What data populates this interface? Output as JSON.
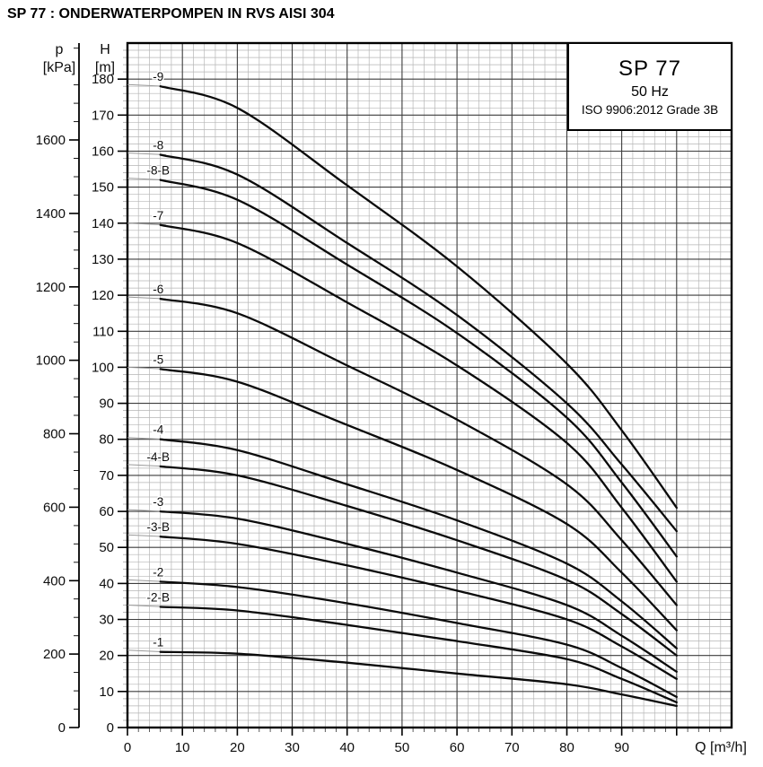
{
  "page": {
    "title": "SP 77 : ONDERWATERPOMPEN IN RVS AISI 304"
  },
  "info_box": {
    "model": "SP 77",
    "frequency": "50 Hz",
    "standard": "ISO 9906:2012 Grade 3B"
  },
  "chart_data": {
    "type": "line",
    "title": "SP 77",
    "xlabel": "Q [m³/h]",
    "ylabel_inner": "H [m]",
    "ylabel_outer": "p [kPa]",
    "x_axis": {
      "name": "Q",
      "unit": "[m³/h]",
      "min": 0,
      "max": 110,
      "major_step": 10,
      "minor_step": 2,
      "tick_labels": [
        0,
        10,
        20,
        30,
        40,
        50,
        60,
        70,
        80,
        90
      ]
    },
    "y_axis_head": {
      "name": "H",
      "unit": "[m]",
      "min": 0,
      "max": 190,
      "major_step": 10,
      "minor_step": 2,
      "tick_labels": [
        0,
        10,
        20,
        30,
        40,
        50,
        60,
        70,
        80,
        90,
        100,
        110,
        120,
        130,
        140,
        150,
        160,
        170,
        180
      ]
    },
    "y_axis_pressure": {
      "name": "p",
      "unit": "[kPa]",
      "min": 0,
      "max": 1860,
      "major_step": 200,
      "minor_step": 50,
      "kpa_per_m": 9.81,
      "tick_labels": [
        0,
        200,
        400,
        600,
        800,
        1000,
        1200,
        1400,
        1600
      ]
    },
    "grid": {
      "minor_step_x": 2,
      "minor_step_y": 2,
      "major_step_x": 10,
      "major_step_y": 10
    },
    "legend_position": "top-right",
    "series": [
      {
        "label": "-9",
        "shutoff_head_m": 178,
        "points": [
          [
            6,
            178
          ],
          [
            20,
            172
          ],
          [
            40,
            150.5
          ],
          [
            60,
            128
          ],
          [
            80,
            101
          ],
          [
            90,
            82.5
          ],
          [
            100,
            61
          ]
        ]
      },
      {
        "label": "-8",
        "shutoff_head_m": 159,
        "points": [
          [
            6,
            159
          ],
          [
            20,
            153.5
          ],
          [
            40,
            134.5
          ],
          [
            60,
            114.5
          ],
          [
            80,
            90
          ],
          [
            90,
            73
          ],
          [
            100,
            54.5
          ]
        ]
      },
      {
        "label": "-8-B",
        "shutoff_head_m": 152,
        "points": [
          [
            6,
            152
          ],
          [
            20,
            146.5
          ],
          [
            40,
            128.5
          ],
          [
            60,
            109.5
          ],
          [
            80,
            86
          ],
          [
            90,
            68
          ],
          [
            100,
            47.5
          ]
        ]
      },
      {
        "label": "-7",
        "shutoff_head_m": 139.5,
        "points": [
          [
            6,
            139.5
          ],
          [
            20,
            134.5
          ],
          [
            40,
            118
          ],
          [
            60,
            100.5
          ],
          [
            80,
            79
          ],
          [
            90,
            61
          ],
          [
            100,
            40.5
          ]
        ]
      },
      {
        "label": "-6",
        "shutoff_head_m": 119,
        "points": [
          [
            6,
            119
          ],
          [
            20,
            115
          ],
          [
            40,
            100.5
          ],
          [
            60,
            85.5
          ],
          [
            80,
            67.5
          ],
          [
            90,
            52
          ],
          [
            100,
            34
          ]
        ]
      },
      {
        "label": "-5",
        "shutoff_head_m": 99.5,
        "points": [
          [
            6,
            99.5
          ],
          [
            20,
            96
          ],
          [
            40,
            84
          ],
          [
            60,
            71.5
          ],
          [
            80,
            56.5
          ],
          [
            90,
            43
          ],
          [
            100,
            27
          ]
        ]
      },
      {
        "label": "-4",
        "shutoff_head_m": 80,
        "points": [
          [
            6,
            80
          ],
          [
            20,
            77
          ],
          [
            40,
            67.5
          ],
          [
            60,
            57.5
          ],
          [
            80,
            45.5
          ],
          [
            90,
            35
          ],
          [
            100,
            22
          ]
        ]
      },
      {
        "label": "-4-B",
        "shutoff_head_m": 72.5,
        "points": [
          [
            6,
            72.5
          ],
          [
            20,
            70
          ],
          [
            40,
            61.5
          ],
          [
            60,
            52
          ],
          [
            80,
            41
          ],
          [
            90,
            31.5
          ],
          [
            100,
            20
          ]
        ]
      },
      {
        "label": "-3",
        "shutoff_head_m": 60,
        "points": [
          [
            6,
            60
          ],
          [
            20,
            58
          ],
          [
            40,
            51
          ],
          [
            60,
            43
          ],
          [
            80,
            34
          ],
          [
            90,
            25.5
          ],
          [
            100,
            15.5
          ]
        ]
      },
      {
        "label": "-3-B",
        "shutoff_head_m": 53,
        "points": [
          [
            6,
            53
          ],
          [
            20,
            51
          ],
          [
            40,
            45
          ],
          [
            60,
            38
          ],
          [
            80,
            30
          ],
          [
            90,
            22.5
          ],
          [
            100,
            13.5
          ]
        ]
      },
      {
        "label": "-2",
        "shutoff_head_m": 40.5,
        "points": [
          [
            6,
            40.5
          ],
          [
            20,
            39
          ],
          [
            40,
            34.5
          ],
          [
            60,
            29
          ],
          [
            80,
            23
          ],
          [
            90,
            16.5
          ],
          [
            100,
            8.5
          ]
        ]
      },
      {
        "label": "-2-B",
        "shutoff_head_m": 33.5,
        "points": [
          [
            6,
            33.5
          ],
          [
            20,
            32.5
          ],
          [
            40,
            28.5
          ],
          [
            60,
            24
          ],
          [
            80,
            19
          ],
          [
            90,
            13.5
          ],
          [
            100,
            7
          ]
        ]
      },
      {
        "label": "-1",
        "shutoff_head_m": 21,
        "points": [
          [
            6,
            21
          ],
          [
            20,
            20.5
          ],
          [
            40,
            18
          ],
          [
            60,
            15
          ],
          [
            80,
            12
          ],
          [
            90,
            9.2
          ],
          [
            100,
            6
          ]
        ]
      }
    ],
    "colors": {
      "curve": "#0b0b0b",
      "grid_minor": "#b6b6b6",
      "grid_major": "#3d3d3d",
      "axis": "#000000",
      "lead_line": "#9a9a9a"
    }
  }
}
